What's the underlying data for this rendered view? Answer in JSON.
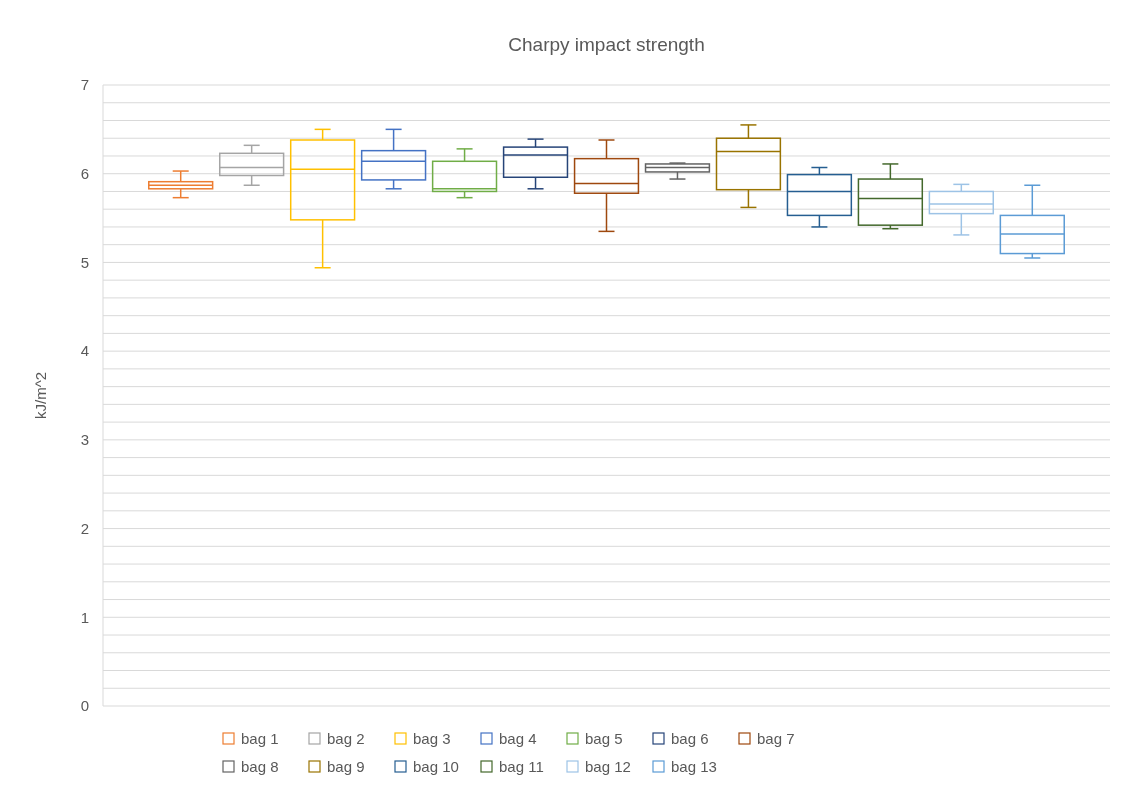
{
  "chart_data": {
    "type": "box",
    "title": "Charpy impact strength",
    "ylabel": "kJ/m^2",
    "categories": [
      null
    ],
    "ylim": [
      0,
      7
    ],
    "yticks": [
      0,
      {
        "value": 0.2,
        "label": null
      },
      {
        "value": 0.4,
        "label": null
      },
      {
        "value": 0.6,
        "label": null
      },
      {
        "value": 0.8,
        "label": null
      },
      1,
      {
        "value": 1.2,
        "label": null
      },
      {
        "value": 1.4,
        "label": null
      },
      {
        "value": 1.6,
        "label": null
      },
      {
        "value": 1.8,
        "label": null
      },
      2,
      {
        "value": 2.2,
        "label": null
      },
      {
        "value": 2.4,
        "label": null
      },
      {
        "value": 2.6,
        "label": null
      },
      {
        "value": 2.8,
        "label": null
      },
      3,
      {
        "value": 3.2,
        "label": null
      },
      {
        "value": 3.4,
        "label": null
      },
      {
        "value": 3.6,
        "label": null
      },
      {
        "value": 3.8,
        "label": null
      },
      4,
      {
        "value": 4.2,
        "label": null
      },
      {
        "value": 4.4,
        "label": null
      },
      {
        "value": 4.6,
        "label": null
      },
      {
        "value": 4.8,
        "label": null
      },
      5,
      {
        "value": 5.2,
        "label": null
      },
      {
        "value": 5.4,
        "label": null
      },
      {
        "value": 5.6,
        "label": null
      },
      {
        "value": 5.8,
        "label": null
      },
      6,
      {
        "value": 6.2,
        "label": null
      },
      {
        "value": 6.4,
        "label": null
      },
      {
        "value": 6.6,
        "label": null
      },
      {
        "value": 6.8,
        "label": null
      },
      7
    ],
    "grid": "y",
    "legend": "bottom",
    "series": [
      {
        "name": "bag 1",
        "color": "#ed7d31",
        "boxes": [
          {
            "low": 5.73,
            "q1": 5.83,
            "median": 5.87,
            "q3": 5.91,
            "high": 6.03
          }
        ]
      },
      {
        "name": "bag 2",
        "color": "#a5a5a5",
        "boxes": [
          {
            "low": 5.87,
            "q1": 5.98,
            "median": 6.07,
            "q3": 6.23,
            "high": 6.32
          }
        ]
      },
      {
        "name": "bag 3",
        "color": "#ffc000",
        "boxes": [
          {
            "low": 4.94,
            "q1": 5.48,
            "median": 6.05,
            "q3": 6.38,
            "high": 6.5
          }
        ]
      },
      {
        "name": "bag 4",
        "color": "#4472c4",
        "boxes": [
          {
            "low": 5.83,
            "q1": 5.93,
            "median": 6.14,
            "q3": 6.26,
            "high": 6.5
          }
        ]
      },
      {
        "name": "bag 5",
        "color": "#70ad47",
        "boxes": [
          {
            "low": 5.73,
            "q1": 5.8,
            "median": 5.83,
            "q3": 6.14,
            "high": 6.28
          }
        ]
      },
      {
        "name": "bag 6",
        "color": "#264478",
        "boxes": [
          {
            "low": 5.83,
            "q1": 5.96,
            "median": 6.21,
            "q3": 6.3,
            "high": 6.39
          }
        ]
      },
      {
        "name": "bag 7",
        "color": "#9e480e",
        "boxes": [
          {
            "low": 5.35,
            "q1": 5.78,
            "median": 5.89,
            "q3": 6.17,
            "high": 6.38
          }
        ]
      },
      {
        "name": "bag 8",
        "color": "#636363",
        "boxes": [
          {
            "low": 5.94,
            "q1": 6.02,
            "median": 6.07,
            "q3": 6.11,
            "high": 6.12
          }
        ]
      },
      {
        "name": "bag 9",
        "color": "#997300",
        "boxes": [
          {
            "low": 5.62,
            "q1": 5.82,
            "median": 6.25,
            "q3": 6.4,
            "high": 6.55
          }
        ]
      },
      {
        "name": "bag 10",
        "color": "#255e91",
        "boxes": [
          {
            "low": 5.4,
            "q1": 5.53,
            "median": 5.8,
            "q3": 5.99,
            "high": 6.07
          }
        ]
      },
      {
        "name": "bag 11",
        "color": "#43682b",
        "boxes": [
          {
            "low": 5.38,
            "q1": 5.42,
            "median": 5.72,
            "q3": 5.94,
            "high": 6.11
          }
        ]
      },
      {
        "name": "bag 12",
        "color": "#9dc3e6",
        "boxes": [
          {
            "low": 5.31,
            "q1": 5.55,
            "median": 5.66,
            "q3": 5.8,
            "high": 5.88
          }
        ]
      },
      {
        "name": "bag 13",
        "color": "#5b9bd5",
        "boxes": [
          {
            "low": 5.05,
            "q1": 5.1,
            "median": 5.32,
            "q3": 5.53,
            "high": 5.87
          }
        ]
      }
    ]
  }
}
